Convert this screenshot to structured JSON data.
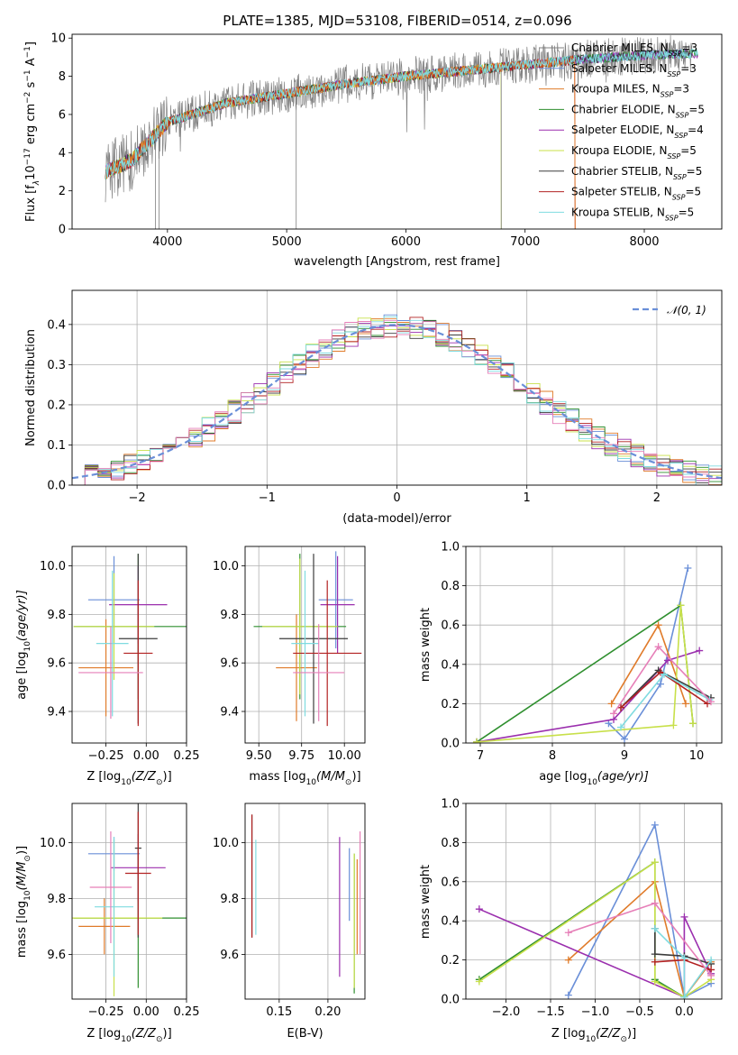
{
  "figure": {
    "title": "PLATE=1385, MJD=53108, FIBERID=0514, z=0.096",
    "colors": {
      "c1": "#6a8fd8",
      "c2": "#e07b2a",
      "c3": "#2f8f2f",
      "c4": "#9b2fae",
      "c5": "#c8e04a",
      "c6": "#3c3c3c",
      "c7": "#b22222",
      "c8": "#7fdbe0",
      "c9": "#e67fb8",
      "gray": "#808080",
      "grid": "#b0b0b0"
    },
    "legend_spectrum": [
      {
        "label": "Chabrier MILES, N",
        "sub": "SSP",
        "tail": "=3",
        "color": "#808080"
      },
      {
        "label": "Salpeter MILES, N",
        "sub": "SSP",
        "tail": "=3",
        "color": "#6a8fd8"
      },
      {
        "label": "Kroupa MILES, N",
        "sub": "SSP",
        "tail": "=3",
        "color": "#e07b2a"
      },
      {
        "label": "Chabrier ELODIE, N",
        "sub": "SSP",
        "tail": "=5",
        "color": "#2f8f2f"
      },
      {
        "label": "Salpeter ELODIE, N",
        "sub": "SSP",
        "tail": "=4",
        "color": "#9b2fae"
      },
      {
        "label": "Kroupa ELODIE, N",
        "sub": "SSP",
        "tail": "=5",
        "color": "#c8e04a"
      },
      {
        "label": "Chabrier STELIB, N",
        "sub": "SSP",
        "tail": "=5",
        "color": "#3c3c3c"
      },
      {
        "label": "Salpeter STELIB, N",
        "sub": "SSP",
        "tail": "=5",
        "color": "#b22222"
      },
      {
        "label": "Kroupa STELIB, N",
        "sub": "SSP",
        "tail": "=5",
        "color": "#7fdbe0"
      }
    ],
    "legend_hist": "𝒩(0, 1)"
  },
  "chart_data": [
    {
      "type": "line",
      "xlabel": "wavelength [Angstrom, rest frame]",
      "ylabel": "Flux [f",
      "ylabel_rest": "10",
      "ylabel_units": " erg cm",
      "ylabel_s": " s",
      "ylabel_A": " A",
      "xlim": [
        3200,
        8650
      ],
      "ylim": [
        0,
        10.2
      ],
      "xticks": [
        "4000",
        "5000",
        "6000",
        "7000",
        "8000"
      ],
      "yticks": [
        "0",
        "2",
        "4",
        "6",
        "8",
        "10"
      ],
      "continuum": {
        "x": [
          3480,
          3700,
          4000,
          4500,
          5000,
          5500,
          6000,
          6500,
          7000,
          7500,
          8000,
          8500
        ],
        "y": [
          3.0,
          3.6,
          5.6,
          6.6,
          7.1,
          7.6,
          8.0,
          8.3,
          8.6,
          8.9,
          9.1,
          9.2
        ]
      }
    },
    {
      "type": "bar",
      "xlabel": "(data-model)/error",
      "ylabel": "Normed distribution",
      "xlim": [
        -2.5,
        2.5
      ],
      "ylim": [
        0,
        0.485
      ],
      "xticks": [
        "−2",
        "−1",
        "0",
        "1",
        "2"
      ],
      "yticks": [
        "0.0",
        "0.1",
        "0.2",
        "0.3",
        "0.4"
      ],
      "bin_width": 0.1,
      "series": [
        {
          "name": "𝒩(0, 1)",
          "type": "gaussian",
          "mean": 0,
          "sigma": 1
        }
      ]
    },
    {
      "type": "scatter",
      "xlabel": "Z [log",
      "xlabel_sub": "10",
      "xlabel_rest": "(Z/Z",
      "ylabel": "age  [log",
      "ylabel_sub": "10",
      "ylabel_rest": "(age/yr)]",
      "xlim": [
        -0.46,
        0.25
      ],
      "ylim": [
        9.27,
        10.08
      ],
      "xticks": [
        "−0.25",
        "0.00",
        "0.25"
      ],
      "yticks": [
        "9.4",
        "9.6",
        "9.8",
        "10.0"
      ],
      "points": [
        {
          "x": -0.2,
          "y": 9.86,
          "xerr": 0.16,
          "yerr": 0.18,
          "c": "c1"
        },
        {
          "x": -0.25,
          "y": 9.58,
          "xerr": 0.17,
          "yerr": 0.2,
          "c": "c2"
        },
        {
          "x": -0.05,
          "y": 9.75,
          "xerr": 0.4,
          "yerr": 0.3,
          "c": "c3"
        },
        {
          "x": -0.05,
          "y": 9.84,
          "xerr": 0.18,
          "yerr": 0.16,
          "c": "c4"
        },
        {
          "x": -0.2,
          "y": 9.75,
          "xerr": 0.25,
          "yerr": 0.22,
          "c": "c5"
        },
        {
          "x": -0.05,
          "y": 9.7,
          "xerr": 0.12,
          "yerr": 0.35,
          "c": "c6"
        },
        {
          "x": -0.05,
          "y": 9.64,
          "xerr": 0.09,
          "yerr": 0.3,
          "c": "c7"
        },
        {
          "x": -0.21,
          "y": 9.68,
          "xerr": 0.1,
          "yerr": 0.3,
          "c": "c8"
        },
        {
          "x": -0.22,
          "y": 9.56,
          "xerr": 0.2,
          "yerr": 0.19,
          "c": "c9"
        }
      ]
    },
    {
      "type": "scatter",
      "xlabel": "mass [log",
      "xlabel_sub": "10",
      "xlabel_rest": "(M/M",
      "xlim": [
        9.42,
        10.12
      ],
      "ylim": [
        9.27,
        10.08
      ],
      "xticks": [
        "9.50",
        "9.75",
        "10.00"
      ],
      "yticks": [
        "9.4",
        "9.6",
        "9.8",
        "10.0"
      ],
      "points": [
        {
          "x": 9.95,
          "y": 9.86,
          "xerr": 0.1,
          "yerr": 0.2,
          "c": "c1"
        },
        {
          "x": 9.72,
          "y": 9.58,
          "xerr": 0.12,
          "yerr": 0.22,
          "c": "c2"
        },
        {
          "x": 9.74,
          "y": 9.75,
          "xerr": 0.27,
          "yerr": 0.3,
          "c": "c3"
        },
        {
          "x": 9.96,
          "y": 9.84,
          "xerr": 0.1,
          "yerr": 0.2,
          "c": "c4"
        },
        {
          "x": 9.74,
          "y": 9.75,
          "xerr": 0.22,
          "yerr": 0.28,
          "c": "c5"
        },
        {
          "x": 9.82,
          "y": 9.7,
          "xerr": 0.2,
          "yerr": 0.35,
          "c": "c6"
        },
        {
          "x": 9.9,
          "y": 9.64,
          "xerr": 0.2,
          "yerr": 0.3,
          "c": "c7"
        },
        {
          "x": 9.77,
          "y": 9.68,
          "xerr": 0.08,
          "yerr": 0.3,
          "c": "c8"
        },
        {
          "x": 9.85,
          "y": 9.56,
          "xerr": 0.15,
          "yerr": 0.2,
          "c": "c9"
        }
      ]
    },
    {
      "type": "line",
      "xlabel": "age  [log",
      "xlabel_sub": "10",
      "xlabel_rest": "(age/yr)]",
      "ylabel": "mass weight",
      "xlim": [
        6.8,
        10.35
      ],
      "ylim": [
        0,
        1.0
      ],
      "xticks": [
        "7",
        "8",
        "9",
        "10"
      ],
      "yticks": [
        "0.0",
        "0.2",
        "0.4",
        "0.6",
        "0.8",
        "1.0"
      ],
      "series": [
        {
          "c": "c1",
          "x": [
            8.78,
            9.0,
            9.5,
            9.88
          ],
          "y": [
            0.1,
            0.02,
            0.3,
            0.89
          ]
        },
        {
          "c": "c2",
          "x": [
            8.82,
            9.47,
            9.85
          ],
          "y": [
            0.2,
            0.6,
            0.2
          ]
        },
        {
          "c": "c3",
          "x": [
            6.95,
            9.78,
            9.95
          ],
          "y": [
            0.005,
            0.7,
            0.1
          ]
        },
        {
          "c": "c4",
          "x": [
            6.95,
            8.85,
            9.6,
            10.04
          ],
          "y": [
            0.005,
            0.12,
            0.42,
            0.47
          ]
        },
        {
          "c": "c5",
          "x": [
            6.95,
            9.68,
            9.78,
            9.95
          ],
          "y": [
            0.005,
            0.09,
            0.7,
            0.1
          ]
        },
        {
          "c": "c6",
          "x": [
            8.95,
            9.47,
            10.2
          ],
          "y": [
            0.18,
            0.37,
            0.23
          ]
        },
        {
          "c": "c7",
          "x": [
            8.95,
            9.5,
            10.15
          ],
          "y": [
            0.18,
            0.36,
            0.2
          ]
        },
        {
          "c": "c8",
          "x": [
            8.95,
            9.55,
            10.18
          ],
          "y": [
            0.08,
            0.35,
            0.22
          ]
        },
        {
          "c": "c9",
          "x": [
            8.85,
            9.47,
            10.2
          ],
          "y": [
            0.15,
            0.49,
            0.21
          ]
        }
      ]
    },
    {
      "type": "scatter",
      "ylabel": "mass [log",
      "ylabel_sub": "10",
      "ylabel_rest": "(M/M",
      "xlabel": "Z [log",
      "xlabel_sub": "10",
      "xlabel_rest": "(Z/Z",
      "xlim": [
        -0.46,
        0.25
      ],
      "ylim": [
        9.44,
        10.14
      ],
      "xticks": [
        "−0.25",
        "0.00",
        "0.25"
      ],
      "yticks": [
        "9.6",
        "9.8",
        "10.0"
      ],
      "points": [
        {
          "x": -0.2,
          "y": 9.96,
          "xerr": 0.16,
          "yerr": 0.06,
          "c": "c1"
        },
        {
          "x": -0.26,
          "y": 9.7,
          "xerr": 0.16,
          "yerr": 0.1,
          "c": "c2"
        },
        {
          "x": -0.05,
          "y": 9.73,
          "xerr": 0.4,
          "yerr": 0.25,
          "c": "c3"
        },
        {
          "x": -0.05,
          "y": 9.91,
          "xerr": 0.17,
          "yerr": 0.12,
          "c": "c4"
        },
        {
          "x": -0.2,
          "y": 9.73,
          "xerr": 0.3,
          "yerr": 0.28,
          "c": "c5"
        },
        {
          "x": -0.05,
          "y": 9.98,
          "xerr": 0.02,
          "yerr": 0.32,
          "c": "c6"
        },
        {
          "x": -0.05,
          "y": 9.89,
          "xerr": 0.08,
          "yerr": 0.22,
          "c": "c7"
        },
        {
          "x": -0.2,
          "y": 9.77,
          "xerr": 0.12,
          "yerr": 0.25,
          "c": "c8"
        },
        {
          "x": -0.22,
          "y": 9.84,
          "xerr": 0.13,
          "yerr": 0.2,
          "c": "c9"
        }
      ]
    },
    {
      "type": "scatter",
      "xlabel": "E(B-V)",
      "xlim": [
        0.115,
        0.238
      ],
      "ylim": [
        9.44,
        10.14
      ],
      "xticks": [
        "0.15",
        "0.20"
      ],
      "yticks": [
        "9.6",
        "9.8",
        "10.0"
      ],
      "points": [
        {
          "x": 0.222,
          "y": 9.85,
          "yerr": 0.13,
          "c": "c1"
        },
        {
          "x": 0.23,
          "y": 9.77,
          "yerr": 0.17,
          "c": "c2"
        },
        {
          "x": 0.227,
          "y": 9.71,
          "yerr": 0.25,
          "c": "c3"
        },
        {
          "x": 0.212,
          "y": 9.77,
          "yerr": 0.25,
          "c": "c4"
        },
        {
          "x": 0.227,
          "y": 9.72,
          "yerr": 0.24,
          "c": "c5"
        },
        {
          "x": 0.122,
          "y": 9.88,
          "yerr": 0.22,
          "c": "c6"
        },
        {
          "x": 0.122,
          "y": 9.88,
          "yerr": 0.22,
          "c": "c7"
        },
        {
          "x": 0.126,
          "y": 9.84,
          "yerr": 0.17,
          "c": "c8"
        },
        {
          "x": 0.233,
          "y": 9.82,
          "yerr": 0.22,
          "c": "c9"
        }
      ]
    },
    {
      "type": "line",
      "xlabel": "Z [log",
      "xlabel_sub": "10",
      "xlabel_rest": "(Z/Z",
      "ylabel": "mass weight",
      "xlim": [
        -2.45,
        0.42
      ],
      "ylim": [
        0,
        1.0
      ],
      "xticks": [
        "−2.0",
        "−1.5",
        "−1.0",
        "−0.5",
        "0.0"
      ],
      "yticks": [
        "0.0",
        "0.2",
        "0.4",
        "0.6",
        "0.8",
        "1.0"
      ],
      "series": [
        {
          "c": "c1",
          "x": [
            -1.3,
            -0.33,
            0.0,
            0.3
          ],
          "y": [
            0.02,
            0.89,
            0.01,
            0.08
          ]
        },
        {
          "c": "c2",
          "x": [
            -1.3,
            -0.33,
            0.0,
            0.3
          ],
          "y": [
            0.2,
            0.6,
            0.01,
            0.19
          ]
        },
        {
          "c": "c3",
          "x": [
            -2.3,
            -0.33,
            -0.33,
            0.0
          ],
          "y": [
            0.1,
            0.7,
            0.1,
            0.01
          ]
        },
        {
          "c": "c4",
          "x": [
            -2.3,
            0.0,
            0.0,
            0.3
          ],
          "y": [
            0.46,
            0.01,
            0.42,
            0.13
          ]
        },
        {
          "c": "c5",
          "x": [
            -2.3,
            -0.33,
            -0.33,
            0.0,
            0.3
          ],
          "y": [
            0.09,
            0.7,
            0.09,
            0.01,
            0.1
          ]
        },
        {
          "c": "c6",
          "x": [
            -0.33,
            -0.33,
            0.0,
            0.3
          ],
          "y": [
            0.36,
            0.23,
            0.22,
            0.18
          ]
        },
        {
          "c": "c7",
          "x": [
            -0.33,
            0.0,
            0.3
          ],
          "y": [
            0.19,
            0.2,
            0.15
          ]
        },
        {
          "c": "c8",
          "x": [
            -0.33,
            0.0,
            0.0,
            0.3
          ],
          "y": [
            0.36,
            0.21,
            0.01,
            0.2
          ]
        },
        {
          "c": "c9",
          "x": [
            -1.3,
            -0.33,
            0.3
          ],
          "y": [
            0.34,
            0.49,
            0.12
          ]
        }
      ]
    }
  ]
}
